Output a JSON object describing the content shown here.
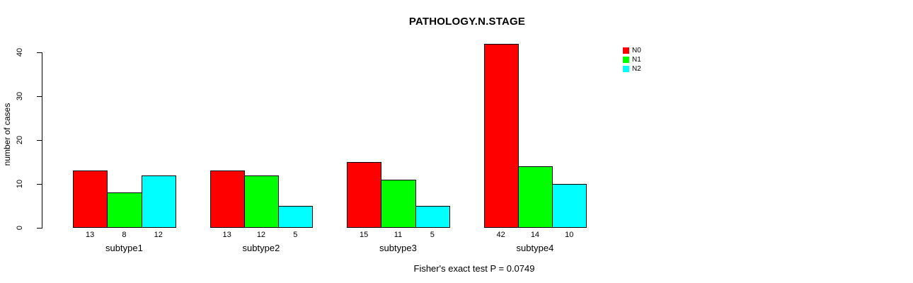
{
  "title": "PATHOLOGY.N.STAGE",
  "footer": "Fisher's exact test P = 0.0749",
  "chart_data": {
    "type": "bar",
    "grouped": true,
    "title": "PATHOLOGY.N.STAGE",
    "xlabel": "",
    "ylabel": "number of cases",
    "categories": [
      "subtype1",
      "subtype2",
      "subtype3",
      "subtype4"
    ],
    "series": [
      {
        "name": "N0",
        "color": "#ff0000",
        "values": [
          13,
          13,
          15,
          42
        ]
      },
      {
        "name": "N1",
        "color": "#00ff00",
        "values": [
          8,
          12,
          11,
          14
        ]
      },
      {
        "name": "N2",
        "color": "#00ffff",
        "values": [
          12,
          5,
          5,
          10
        ]
      }
    ],
    "bar_value_labels_shown": true,
    "ylim": [
      0,
      42
    ],
    "yticks": [
      0,
      10,
      20,
      30,
      40
    ],
    "grid": false,
    "legend_position": "top-right",
    "annotation": "Fisher's exact test P = 0.0749"
  }
}
